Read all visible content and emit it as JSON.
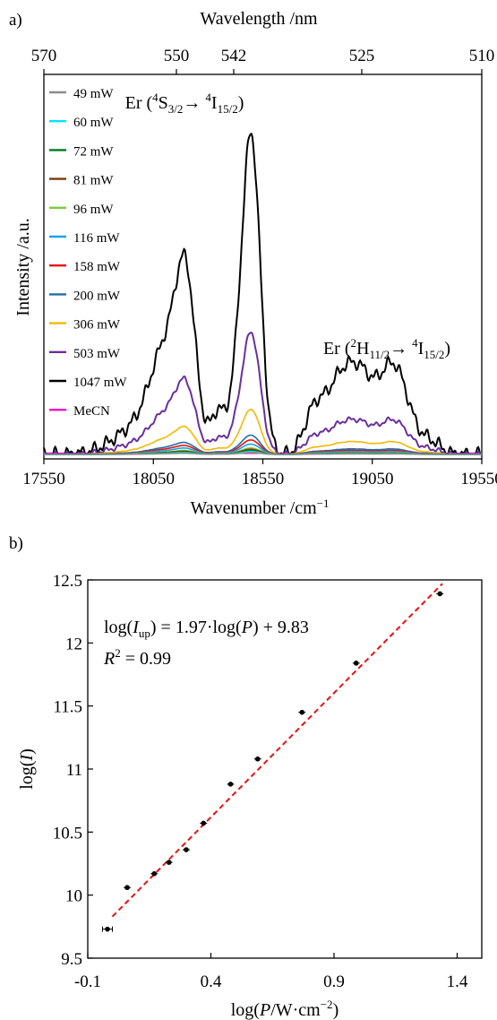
{
  "chart_data": [
    {
      "panel_label": "a)",
      "type": "line",
      "xlabel_html": "Wavenumber /cm<tspan dy=\"-7\" font-size=\"13\">−1</tspan>",
      "xlabel": "Wavenumber /cm−1",
      "xlim": [
        17550,
        19550
      ],
      "xticks": [
        17550,
        18050,
        18550,
        19050,
        19550
      ],
      "x2label": "Wavelength /nm",
      "x2ticks": [
        "570",
        "550",
        "542",
        "525",
        "510"
      ],
      "ylabel": "Intensity /a.u.",
      "grid": false,
      "legend_position": "top-left",
      "annotations": [
        "Er (4S3/2→4I15/2)",
        "Er (2H11/2→4I15/2)"
      ],
      "series": [
        {
          "name": "49 mW",
          "color": "#8c8c8c",
          "scale": 0.006,
          "offset": 0
        },
        {
          "name": "60 mW",
          "color": "#00e5ff",
          "scale": 0.009,
          "offset": 0
        },
        {
          "name": "72 mW",
          "color": "#007a1f",
          "scale": 0.012,
          "offset": 0
        },
        {
          "name": "81 mW",
          "color": "#7a3b0a",
          "scale": 0.016,
          "offset": 0
        },
        {
          "name": "96 mW",
          "color": "#7ccc3a",
          "scale": 0.02,
          "offset": 0
        },
        {
          "name": "116 mW",
          "color": "#1aa3e8",
          "scale": 0.032,
          "offset": 0
        },
        {
          "name": "158 mW",
          "color": "#e81010",
          "scale": 0.045,
          "offset": 0
        },
        {
          "name": "200 mW",
          "color": "#1f6fa8",
          "scale": 0.06,
          "offset": 0
        },
        {
          "name": "306 mW",
          "color": "#f5b800",
          "scale": 0.14,
          "offset": 0
        },
        {
          "name": "503 mW",
          "color": "#6a2fa0",
          "scale": 0.38,
          "offset": 0
        },
        {
          "name": "1047 mW",
          "color": "#000000",
          "scale": 1.0,
          "offset": 0
        },
        {
          "name": "MeCN",
          "color": "#ff00cc",
          "scale": 0.0,
          "offset": 0.003
        }
      ]
    },
    {
      "panel_label": "b)",
      "type": "scatter",
      "xlabel": "log(P/W·cm−2)",
      "ylabel": "log(I)",
      "xlim": [
        -0.1,
        1.5
      ],
      "ylim": [
        9.5,
        12.5
      ],
      "xticks": [
        "-0.1",
        "0.4",
        "0.9",
        "1.4"
      ],
      "xtick_values": [
        -0.1,
        0.4,
        0.9,
        1.4
      ],
      "yticks": [
        "9.5",
        "10",
        "10.5",
        "11",
        "11.5",
        "12",
        "12.5"
      ],
      "ytick_values": [
        9.5,
        10,
        10.5,
        11,
        11.5,
        12,
        12.5
      ],
      "grid": false,
      "fit": {
        "slope": 1.97,
        "intercept": 9.83,
        "x_range": [
          0.0,
          1.34
        ],
        "color": "#e81010"
      },
      "equation_text": "log(Iup) = 1.97·log(P) + 9.83",
      "r2_text": "R2 = 0.99",
      "points": [
        {
          "x": -0.02,
          "y": 9.73,
          "xerr": 0.02
        },
        {
          "x": 0.06,
          "y": 10.06
        },
        {
          "x": 0.17,
          "y": 10.17
        },
        {
          "x": 0.23,
          "y": 10.26
        },
        {
          "x": 0.3,
          "y": 10.36
        },
        {
          "x": 0.37,
          "y": 10.57
        },
        {
          "x": 0.48,
          "y": 10.88
        },
        {
          "x": 0.59,
          "y": 11.08
        },
        {
          "x": 0.77,
          "y": 11.45
        },
        {
          "x": 0.99,
          "y": 11.84
        },
        {
          "x": 1.33,
          "y": 12.39
        }
      ]
    }
  ]
}
